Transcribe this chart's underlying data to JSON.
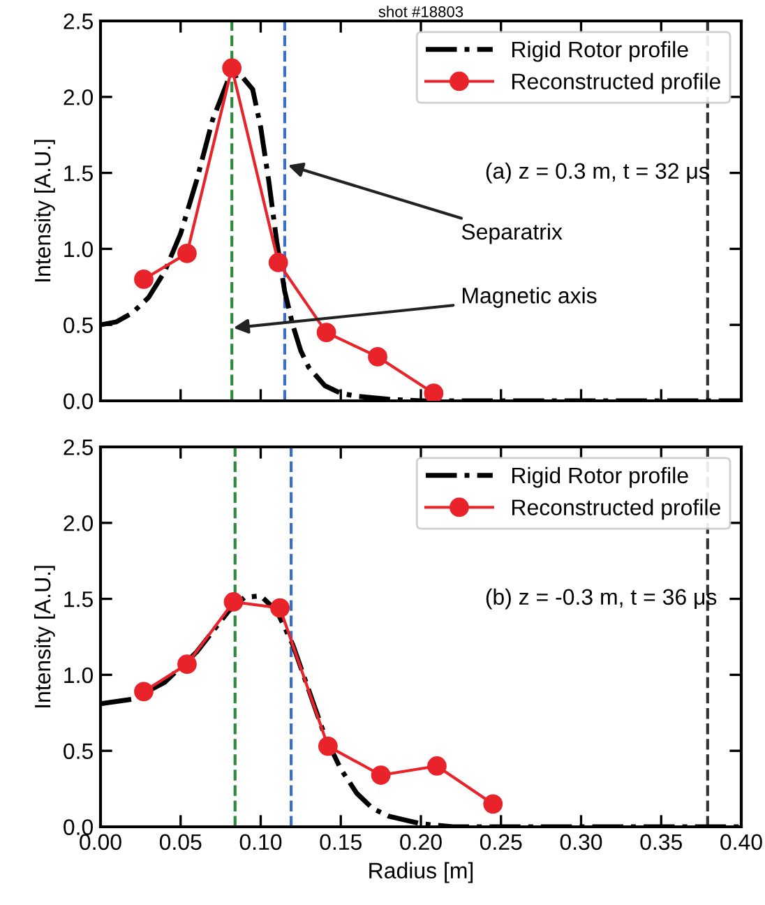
{
  "chart_data": [
    {
      "type": "line",
      "title": "shot #18803",
      "ylabel": "Intensity [A.U.]",
      "xlim": [
        0,
        0.4
      ],
      "xticks": [
        0,
        0.05,
        0.1,
        0.15,
        0.2,
        0.25,
        0.3,
        0.35,
        0.4
      ],
      "ylim": [
        0,
        2.5
      ],
      "yticks": [
        {
          "value": 0,
          "label": "0.0"
        },
        0.5,
        {
          "value": 1,
          "label": "1.0"
        },
        1.5,
        {
          "value": 2,
          "label": "2.0"
        },
        2.5
      ],
      "tick_labels": "y",
      "grid": false,
      "legend": "top right",
      "series": [
        {
          "name": "Rigid Rotor profile",
          "color": "#000000",
          "marker": "none",
          "line_style": "dashdot",
          "x": [
            0,
            0.01,
            0.02,
            0.03,
            0.04,
            0.05,
            0.06,
            0.07,
            0.08,
            0.087,
            0.095,
            0.1,
            0.105,
            0.11,
            0.115,
            0.12,
            0.125,
            0.13,
            0.14,
            0.15,
            0.16,
            0.18,
            0.2,
            0.25,
            0.3,
            0.35,
            0.4
          ],
          "values": [
            0.5,
            0.52,
            0.58,
            0.68,
            0.85,
            1.1,
            1.45,
            1.85,
            2.12,
            2.15,
            2.05,
            1.8,
            1.45,
            1.05,
            0.72,
            0.5,
            0.33,
            0.22,
            0.1,
            0.05,
            0.03,
            0.01,
            0,
            0,
            0,
            0,
            0
          ]
        },
        {
          "name": "Reconstructed profile",
          "color": "#e8232a",
          "marker": "circle",
          "line_style": "solid",
          "x": [
            0.027,
            0.054,
            0.082,
            0.111,
            0.141,
            0.173,
            0.208
          ],
          "values": [
            0.8,
            0.97,
            2.19,
            0.91,
            0.45,
            0.29,
            0.05
          ]
        }
      ],
      "ref_lines": [
        {
          "axis": "x",
          "value": 0.082,
          "color": "#2e8b3e",
          "line_style": "dashed"
        },
        {
          "axis": "x",
          "value": 0.115,
          "color": "#3a6fc4",
          "line_style": "dashed"
        },
        {
          "axis": "x",
          "value": 0.379,
          "color": "#333333",
          "line_style": "dashed"
        }
      ],
      "annotations": [
        "(a) z = 0.3 m, t = 32 μs",
        {
          "text": "Separatrix",
          "x": 0.117,
          "y": 1.55
        },
        {
          "text": "Magnetic axis",
          "x": 0.083,
          "y": 0.48
        }
      ]
    },
    {
      "type": "line",
      "xlabel": "Radius [m]",
      "ylabel": "Intensity [A.U.]",
      "xlim": [
        0,
        0.4
      ],
      "xticks": [
        {
          "value": 0,
          "label": "0.00"
        },
        0.05,
        {
          "value": 0.1,
          "label": "0.10"
        },
        0.15,
        {
          "value": 0.2,
          "label": "0.20"
        },
        0.25,
        {
          "value": 0.3,
          "label": "0.30"
        },
        0.35,
        {
          "value": 0.4,
          "label": "0.40"
        }
      ],
      "ylim": [
        0,
        2.5
      ],
      "yticks": [
        {
          "value": 0,
          "label": "0.0"
        },
        0.5,
        {
          "value": 1,
          "label": "1.0"
        },
        1.5,
        {
          "value": 2,
          "label": "2.0"
        },
        2.5
      ],
      "grid": false,
      "legend": "top right",
      "series": [
        {
          "name": "Rigid Rotor profile",
          "color": "#000000",
          "marker": "none",
          "line_style": "dashdot",
          "x": [
            0,
            0.02,
            0.04,
            0.06,
            0.08,
            0.09,
            0.1,
            0.11,
            0.12,
            0.13,
            0.14,
            0.15,
            0.16,
            0.17,
            0.18,
            0.2,
            0.22,
            0.3,
            0.35,
            0.4
          ],
          "values": [
            0.81,
            0.84,
            0.95,
            1.15,
            1.42,
            1.51,
            1.52,
            1.42,
            1.2,
            0.9,
            0.6,
            0.38,
            0.22,
            0.12,
            0.07,
            0.02,
            0,
            0,
            0,
            0
          ]
        },
        {
          "name": "Reconstructed profile",
          "color": "#e8232a",
          "marker": "circle",
          "line_style": "solid",
          "x": [
            0.027,
            0.054,
            0.083,
            0.112,
            0.142,
            0.175,
            0.21,
            0.245
          ],
          "values": [
            0.89,
            1.07,
            1.48,
            1.44,
            0.53,
            0.34,
            0.4,
            0.15
          ]
        }
      ],
      "ref_lines": [
        {
          "axis": "x",
          "value": 0.084,
          "color": "#2e8b3e",
          "line_style": "dashed"
        },
        {
          "axis": "x",
          "value": 0.119,
          "color": "#3a6fc4",
          "line_style": "dashed"
        },
        {
          "axis": "x",
          "value": 0.379,
          "color": "#333333",
          "line_style": "dashed"
        }
      ],
      "annotations": [
        "(b) z = -0.3 m, t = 36 μs"
      ]
    }
  ]
}
